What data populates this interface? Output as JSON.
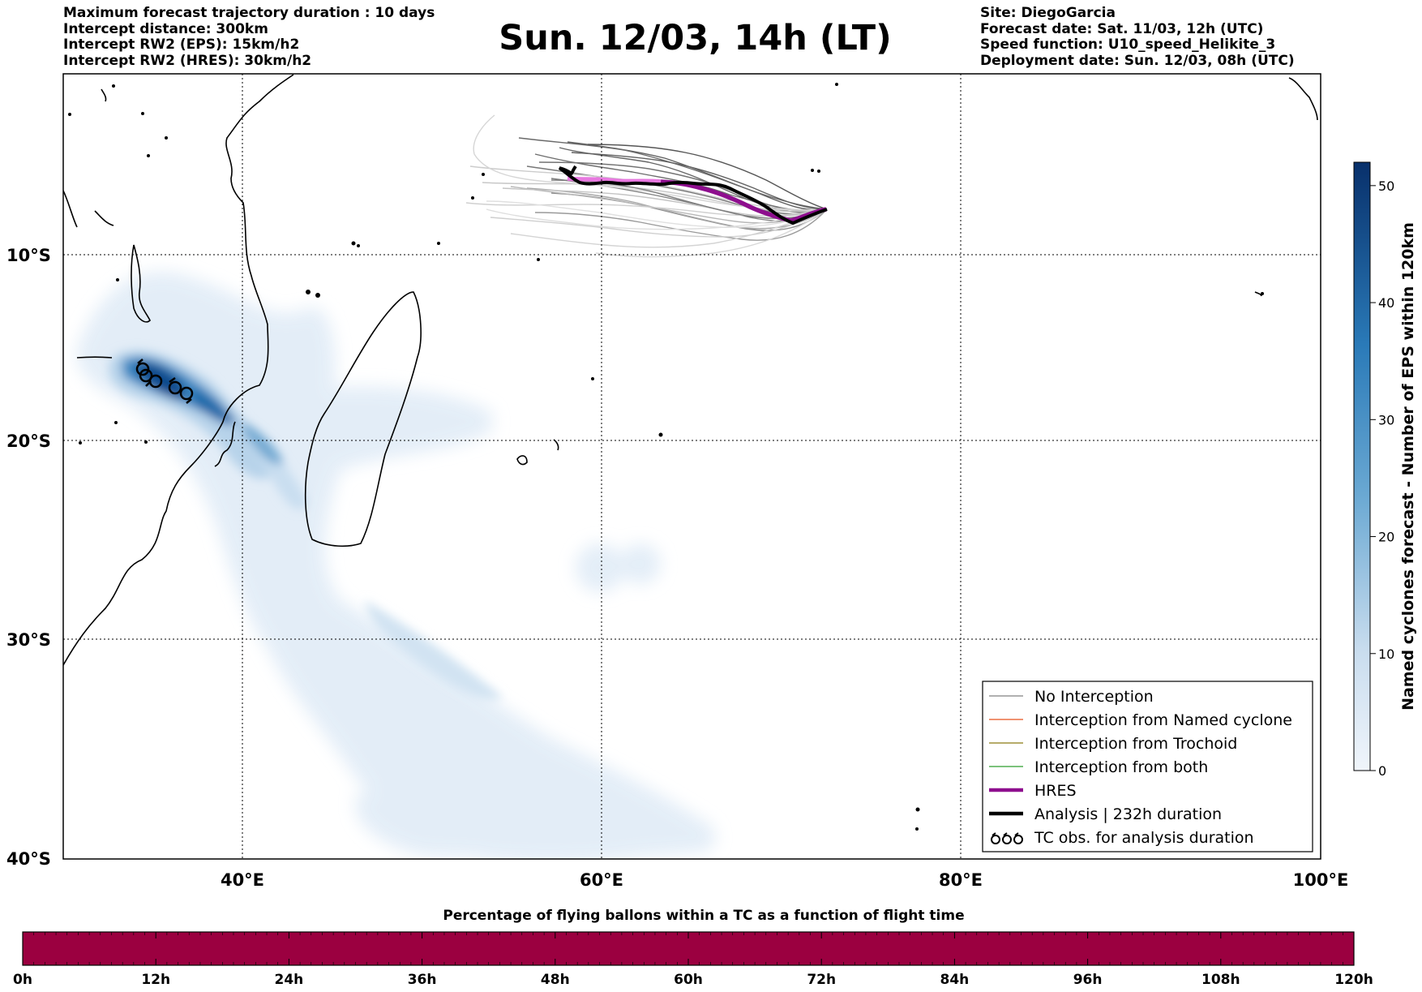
{
  "header": {
    "left_lines": [
      "Maximum forecast trajectory duration : 10 days",
      "Intercept distance: 300km",
      "Intercept RW2 (EPS):  15km/h2",
      "Intercept RW2 (HRES): 30km/h2"
    ],
    "right_lines": [
      "Site: DiegoGarcia",
      "Forecast date: Sat. 11/03, 12h (UTC)",
      "Speed function: U10_speed_Helikite_3",
      "Deployment date: Sun. 12/03, 08h (UTC)"
    ],
    "title": "Sun. 12/03, 14h (LT)"
  },
  "map": {
    "lon_range": [
      30,
      100
    ],
    "lat_range": [
      0,
      -40
    ],
    "x_ticks": [
      "40°E",
      "60°E",
      "80°E",
      "100°E"
    ],
    "y_ticks": [
      "10°S",
      "20°S",
      "30°S",
      "40°S"
    ],
    "gridlines": "dotted"
  },
  "colorbar": {
    "label": "Named cyclones forecast - Number of EPS within 120km",
    "ticks": [
      "0",
      "10",
      "20",
      "30",
      "40",
      "50"
    ],
    "range": [
      0,
      52
    ],
    "colors": [
      "#e2ecf7",
      "#08306b"
    ]
  },
  "legend": {
    "items": [
      {
        "label": "No Interception",
        "color": "#808080",
        "style": "thin",
        "icon": "line"
      },
      {
        "label": "Interception from Named cyclone",
        "color": "#e8501c",
        "style": "thin",
        "icon": "line"
      },
      {
        "label": "Interception from Trochoid",
        "color": "#8a7a10",
        "style": "thin",
        "icon": "line"
      },
      {
        "label": "Interception from both",
        "color": "#2e9e2e",
        "style": "thin",
        "icon": "line"
      },
      {
        "label": "HRES",
        "color": "#8e0e8e",
        "style": "thick",
        "icon": "line"
      },
      {
        "label": "Analysis | 232h duration",
        "color": "#000000",
        "style": "thick",
        "icon": "line"
      },
      {
        "label": "TC obs. for analysis duration",
        "color": "#000000",
        "style": "symbol",
        "icon": "tc-symbols"
      }
    ]
  },
  "bottom_bar": {
    "title": "Percentage of flying ballons within a TC as a function of flight time",
    "ticks": [
      "0h",
      "12h",
      "24h",
      "36h",
      "48h",
      "60h",
      "72h",
      "84h",
      "96h",
      "108h",
      "120h"
    ],
    "color": "#9b0040",
    "percentages": [
      0,
      0,
      0,
      0,
      0,
      0,
      0,
      0,
      0,
      0,
      0
    ]
  },
  "colors": {
    "hres": "#8e0e8e",
    "hres_start": "#e879e0",
    "analysis": "#000000",
    "ensemble": "#777777"
  },
  "chart_data": {
    "type": "trajectory-map",
    "analysis_track": {
      "name": "Analysis | 232h duration",
      "lon": [
        72.4,
        70.3,
        68.6,
        66.4,
        64.3,
        62.6,
        60.8,
        59.5,
        58.5
      ],
      "lat": [
        -7.5,
        -8.4,
        -7.9,
        -6.8,
        -6.2,
        -6.4,
        -6.2,
        -5.7,
        -5.0
      ]
    },
    "hres_track": {
      "name": "HRES",
      "lon": [
        72.4,
        70.3,
        68.6,
        66.4,
        64.5,
        62.5,
        60.8,
        59.5,
        58.0
      ],
      "lat": [
        -7.5,
        -8.5,
        -8.0,
        -7.0,
        -6.4,
        -6.1,
        -6.0,
        -5.9,
        -5.6
      ]
    }
  }
}
